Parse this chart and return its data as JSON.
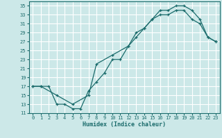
{
  "xlabel": "Humidex (Indice chaleur)",
  "background_color": "#cce8e8",
  "grid_color": "#ffffff",
  "line_color": "#1a6b6b",
  "xlim": [
    -0.5,
    23.5
  ],
  "ylim": [
    11,
    36
  ],
  "xticks": [
    0,
    1,
    2,
    3,
    4,
    5,
    6,
    7,
    8,
    9,
    10,
    11,
    12,
    13,
    14,
    15,
    16,
    17,
    18,
    19,
    20,
    21,
    22,
    23
  ],
  "yticks": [
    11,
    13,
    15,
    17,
    19,
    21,
    23,
    25,
    27,
    29,
    31,
    33,
    35
  ],
  "curve1_x": [
    0,
    1,
    2,
    3,
    4,
    5,
    6,
    7,
    8,
    9,
    10,
    11,
    12,
    13,
    14,
    15,
    16,
    17,
    18,
    19,
    20,
    21,
    22,
    23
  ],
  "curve1_y": [
    17,
    17,
    17,
    13,
    13,
    12,
    12,
    16,
    18,
    20,
    23,
    23,
    26,
    28,
    30,
    32,
    33,
    33,
    34,
    34,
    32,
    31,
    28,
    27
  ],
  "curve2_x": [
    0,
    1,
    3,
    5,
    7,
    8,
    10,
    12,
    13,
    14,
    15,
    16,
    17,
    18,
    19,
    20,
    21,
    22,
    23
  ],
  "curve2_y": [
    17,
    17,
    15,
    13,
    15,
    22,
    24,
    26,
    29,
    30,
    32,
    34,
    34,
    35,
    35,
    34,
    32,
    28,
    27
  ]
}
